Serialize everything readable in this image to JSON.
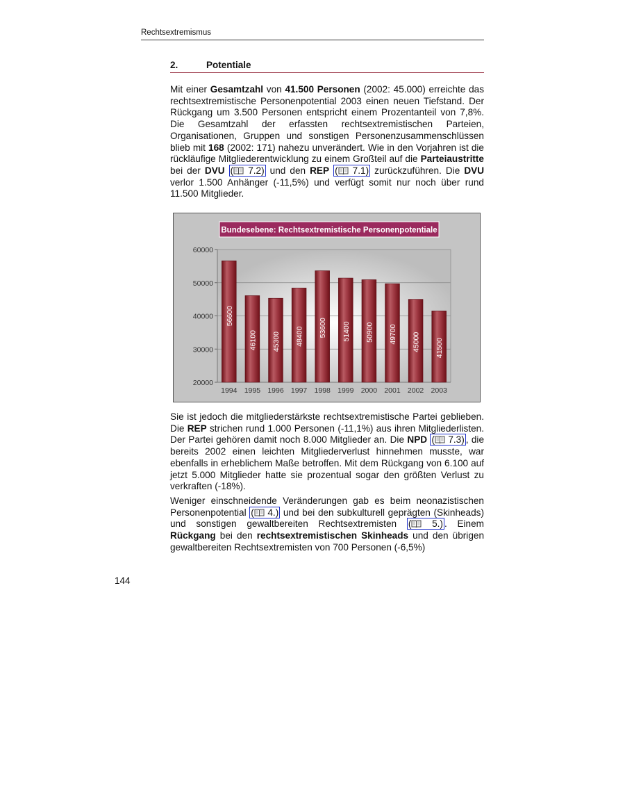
{
  "running_header": "Rechtsextremismus",
  "section": {
    "number": "2.",
    "title": "Potentiale"
  },
  "paragraphs": [
    [
      {
        "t": "Mit einer "
      },
      {
        "t": "Gesamtzahl",
        "b": 1
      },
      {
        "t": " von "
      },
      {
        "t": "41.500 Personen",
        "b": 1
      },
      {
        "t": " (2002: 45.000) erreichte das rechtsextremistische Personenpotential 2003 einen neuen Tiefstand. Der Rückgang um 3.500 Personen entspricht einem Prozentanteil von 7,8%. Die Gesamtzahl der erfassten rechtsextremistischen Parteien, Organisationen, Gruppen und sonstigen Personenzusammenschlüssen blieb mit "
      },
      {
        "t": "168",
        "b": 1
      },
      {
        "t": " (2002: 171) nahezu unverändert. Wie in den Vorjahren ist die rückläufige Mitgliederentwicklung zu einem Großteil auf die "
      },
      {
        "t": "Parteiaustritte",
        "b": 1
      },
      {
        "t": " bei der "
      },
      {
        "t": "DVU",
        "b": 1
      },
      {
        "t": " "
      },
      {
        "t": " 7.2)",
        "link": 1
      },
      {
        "t": " und den "
      },
      {
        "t": "REP",
        "b": 1
      },
      {
        "t": " "
      },
      {
        "t": " 7.1)",
        "link": 1
      },
      {
        "t": " zurückzuführen. Die "
      },
      {
        "t": "DVU",
        "b": 1
      },
      {
        "t": " verlor 1.500 Anhänger (-11,5%) und verfügt somit nur noch über rund 11.500 Mitglieder."
      }
    ],
    [
      {
        "t": "Sie ist jedoch die mitgliederstärkste rechtsextremistische Partei geblieben. Die "
      },
      {
        "t": "REP",
        "b": 1
      },
      {
        "t": " strichen rund 1.000 Personen (-11,1%) aus ihren Mitgliederlisten. Der Partei gehören damit noch 8.000 Mitglieder an. Die "
      },
      {
        "t": "NPD",
        "b": 1
      },
      {
        "t": " "
      },
      {
        "t": " 7.3)",
        "link": 1
      },
      {
        "t": ", die bereits 2002 einen leichten Mitgliederverlust hinnehmen musste, war ebenfalls in erheblichem Maße betroffen. Mit dem Rückgang von 6.100 auf jetzt 5.000 Mitglieder hatte sie prozentual sogar den größten Verlust zu verkraften (-18%)."
      }
    ],
    [
      {
        "t": "Weniger einschneidende Veränderungen gab es beim neonazistischen Personenpotential "
      },
      {
        "t": " 4.)",
        "link": 1
      },
      {
        "t": " und bei den subkulturell geprägten (Skinheads) und sonstigen gewaltbereiten Rechtsextremisten "
      },
      {
        "t": " 5.)",
        "link": 1
      },
      {
        "t": ". Einem "
      },
      {
        "t": "Rückgang",
        "b": 1
      },
      {
        "t": " bei den "
      },
      {
        "t": "rechtsextremistischen Skinheads",
        "b": 1
      },
      {
        "t": " und den übrigen gewaltbereiten Rechtsextremisten von 700 Personen (-6,5%)"
      }
    ]
  ],
  "link_color": "#2233cc",
  "link_icon": "book-icon",
  "page_number": "144",
  "chart_data": {
    "type": "bar",
    "title": "Bundesebene: Rechtsextremistische Personenpotentiale",
    "categories": [
      "1994",
      "1995",
      "1996",
      "1997",
      "1998",
      "1999",
      "2000",
      "2001",
      "2002",
      "2003"
    ],
    "values": [
      56600,
      46100,
      45300,
      48400,
      53600,
      51400,
      50900,
      49700,
      45000,
      41500
    ],
    "yticks": [
      "20000",
      "30000",
      "40000",
      "50000",
      "60000"
    ],
    "ylim": [
      20000,
      60000
    ],
    "grid": true,
    "data_labels": "vertical-inside",
    "bar_color": "#8b1e2a",
    "title_bg": "#9b2a5e"
  }
}
